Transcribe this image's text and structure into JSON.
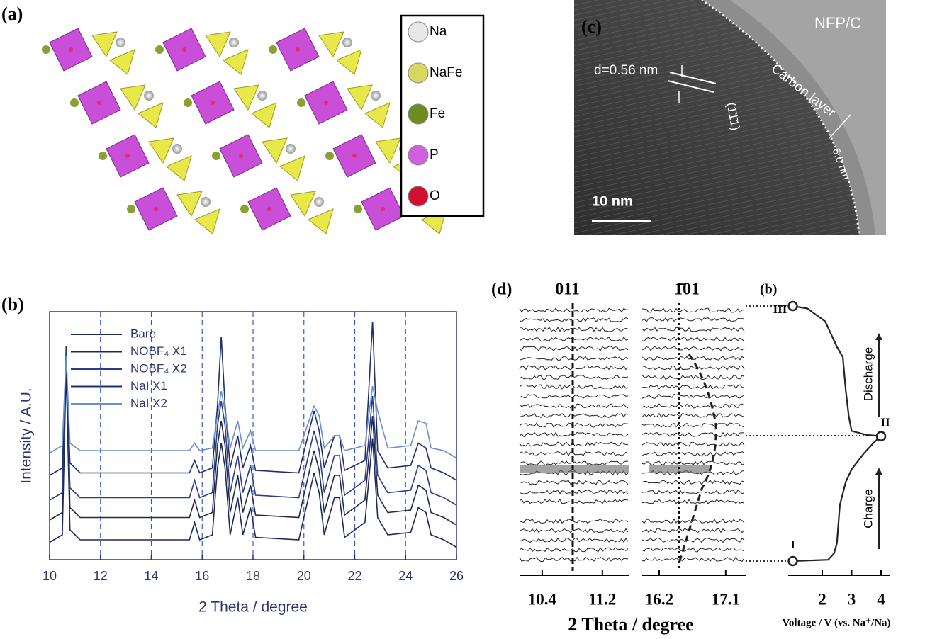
{
  "panels": {
    "a": {
      "label": "(a)",
      "legend": [
        "Na",
        "NaFe",
        "Fe",
        "P",
        "O"
      ]
    },
    "c": {
      "label": "(c)",
      "sample": "NFP/C",
      "layer": "Carbon layer",
      "spacing": "d=0.56 nm",
      "plane": "(1̄1̄1)",
      "thickness": "6.0 nm",
      "scale_bar": "10 nm"
    },
    "d": {
      "label": "(d)",
      "xlabel": "2 Theta / degree",
      "segments": [
        {
          "peak": "011",
          "xlim": [
            10.1,
            11.56
          ],
          "xticks": [
            10.4,
            11.2
          ]
        },
        {
          "peak": "1̄01",
          "xlim": [
            15.97,
            17.37
          ],
          "xticks": [
            16.2,
            17.1
          ]
        }
      ]
    }
  },
  "chart_data": [
    {
      "type": "line",
      "title": "(b)",
      "xlabel": "2 Theta / degree",
      "ylabel": "Intensity / A.U.",
      "xlim": [
        10,
        26
      ],
      "xticks": [
        10,
        12,
        14,
        16,
        18,
        20,
        22,
        24,
        26
      ],
      "ylim": [
        0,
        100
      ],
      "guides": [
        12,
        14,
        16,
        18,
        20,
        22,
        24
      ],
      "x": [
        10.0,
        10.5,
        10.65,
        10.8,
        11.2,
        14.0,
        15.5,
        15.7,
        15.9,
        16.4,
        16.6,
        16.75,
        16.9,
        17.1,
        17.4,
        17.6,
        17.9,
        18.1,
        19.8,
        20.4,
        20.6,
        20.8,
        21.2,
        21.4,
        21.6,
        22.4,
        22.7,
        22.9,
        23.3,
        24.2,
        24.5,
        24.8,
        25.0,
        25.5,
        26.0
      ],
      "series": [
        {
          "name": "Bare",
          "color": "#1a2a5e",
          "values": [
            7,
            10,
            77,
            12,
            8,
            8,
            8,
            15,
            8,
            10,
            37,
            47,
            37,
            10,
            25,
            10,
            21,
            9,
            8,
            35,
            27,
            10,
            25,
            25,
            9,
            15,
            49,
            17,
            10,
            11,
            21,
            19,
            10,
            8,
            5
          ]
        },
        {
          "name": "NOBF₄ X1",
          "color": "#222a4a",
          "values": [
            16,
            19,
            86,
            21,
            17,
            17,
            17,
            24,
            17,
            19,
            46,
            56,
            46,
            19,
            34,
            19,
            30,
            18,
            17,
            44,
            36,
            19,
            34,
            34,
            18,
            24,
            58,
            26,
            19,
            20,
            30,
            28,
            19,
            17,
            14
          ]
        },
        {
          "name": "NOBF₄ X2",
          "color": "#2b3d8a",
          "values": [
            24,
            27,
            85,
            29,
            25,
            25,
            25,
            32,
            25,
            27,
            54,
            64,
            54,
            27,
            42,
            27,
            38,
            26,
            25,
            52,
            44,
            27,
            42,
            42,
            26,
            32,
            66,
            34,
            27,
            28,
            38,
            36,
            27,
            25,
            22
          ]
        },
        {
          "name": "NaI X1",
          "color": "#1f2f6a",
          "values": [
            34,
            37,
            80,
            39,
            35,
            35,
            35,
            40,
            35,
            37,
            62,
            90,
            62,
            37,
            50,
            37,
            46,
            36,
            35,
            60,
            52,
            37,
            50,
            50,
            36,
            40,
            96,
            44,
            37,
            38,
            47,
            45,
            37,
            35,
            32
          ]
        },
        {
          "name": "NaI X2",
          "color": "#6a8fd0",
          "values": [
            43,
            46,
            82,
            47,
            44,
            44,
            44,
            47,
            44,
            45,
            58,
            68,
            60,
            45,
            56,
            45,
            52,
            44,
            44,
            62,
            58,
            45,
            50,
            50,
            44,
            46,
            70,
            60,
            45,
            46,
            56,
            55,
            45,
            44,
            41
          ]
        }
      ]
    },
    {
      "type": "line",
      "title": "(b)",
      "xlabel": "Voltage / V (vs. Na⁺/Na)",
      "xlim": [
        0.8,
        4.2
      ],
      "xticks": [
        2,
        3,
        4
      ],
      "ylim": [
        0,
        100
      ],
      "states": [
        "I",
        "II",
        "III"
      ],
      "arrows": [
        "Charge",
        "Discharge"
      ],
      "x": [
        1.0,
        2.2,
        2.4,
        2.5,
        2.6,
        2.8,
        3.0,
        3.4,
        3.8,
        4.0,
        3.5,
        3.0,
        2.9,
        2.8,
        2.7,
        2.5,
        2.1,
        1.5,
        1.0
      ],
      "values": [
        0,
        0.5,
        3,
        7,
        22,
        31,
        36,
        42,
        47,
        49,
        49.5,
        51,
        57,
        67,
        80,
        84,
        94,
        99,
        100
      ],
      "color": "#222222"
    }
  ]
}
